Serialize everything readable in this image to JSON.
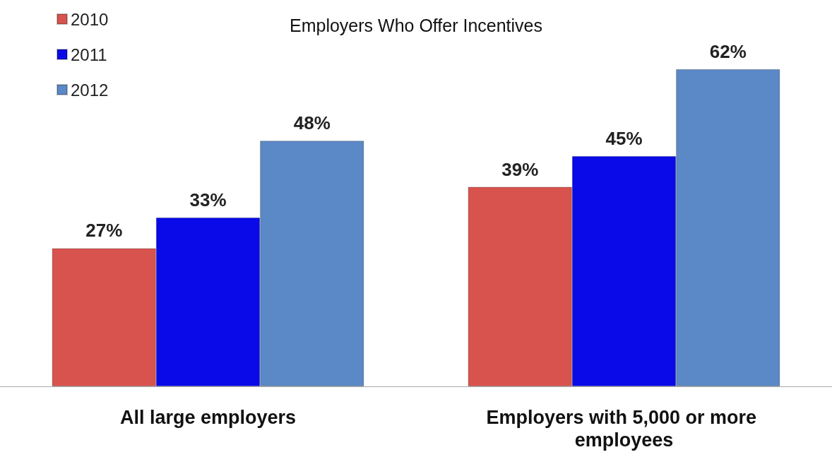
{
  "chart_data": {
    "type": "bar",
    "title": "Employers Who Offer Incentives",
    "categories": [
      "All large employers",
      "Employers with 5,000 or more employees"
    ],
    "series": [
      {
        "name": "2010",
        "color": "#d9534e",
        "values": [
          27,
          39
        ],
        "value_labels": [
          "27%",
          "39%"
        ]
      },
      {
        "name": "2011",
        "color": "#0a0ae8",
        "values": [
          33,
          45
        ],
        "value_labels": [
          "33%",
          "45%"
        ]
      },
      {
        "name": "2012",
        "color": "#5b88c6",
        "values": [
          48,
          62
        ],
        "value_labels": [
          "48%",
          "62%"
        ]
      }
    ],
    "legend": "top left"
  }
}
